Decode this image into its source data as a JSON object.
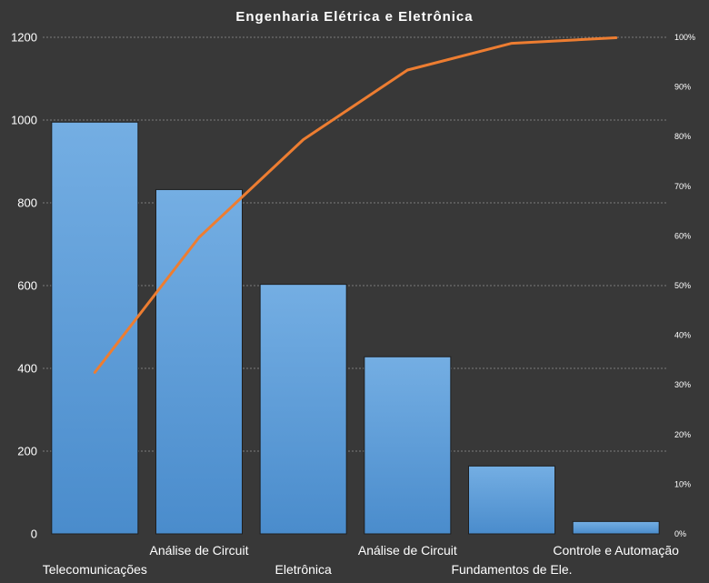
{
  "chart_data": {
    "type": "bar",
    "title": "Engenharia Elétrica e Eletrônica",
    "categories": [
      "Telecomunicações",
      "Análise de Circuit",
      "Eletrônica",
      "Análise de Circuit",
      "Fundamentos de Ele.",
      "Controle e Automação"
    ],
    "series": [
      {
        "type": "bar",
        "values": [
          995,
          832,
          603,
          428,
          164,
          30
        ],
        "color": "#5b9bd5"
      },
      {
        "type": "line",
        "axis": "right",
        "values": [
          32.5,
          59.7,
          79.4,
          93.4,
          98.8,
          99.9
        ],
        "unit": "%",
        "color": "#ed7d31"
      }
    ],
    "ylim": [
      0,
      1200
    ],
    "yticks": [
      "0",
      "200",
      "400",
      "600",
      "800",
      "1000",
      "1200"
    ],
    "y2lim": [
      0,
      100
    ],
    "y2ticks": [
      "0%",
      "10%",
      "20%",
      "30%",
      "40%",
      "50%",
      "60%",
      "70%",
      "80%",
      "90%",
      "100%"
    ],
    "grid": true,
    "legend": "none"
  }
}
